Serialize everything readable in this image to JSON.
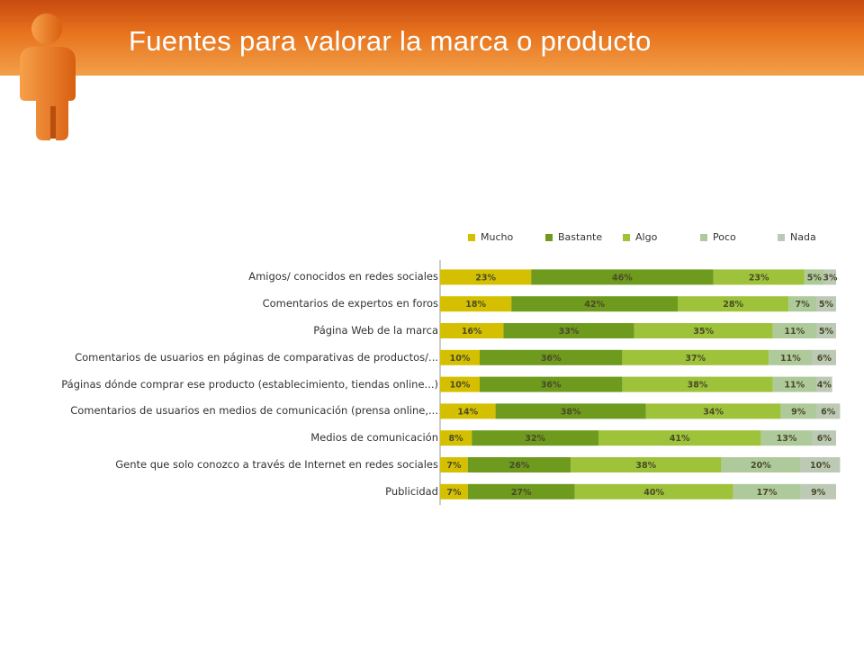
{
  "header": {
    "title": "Fuentes para valorar la marca o producto"
  },
  "icons": {
    "header_figure": "person-figure-icon"
  },
  "colors": {
    "header_orange": "#e06a1a",
    "mucho": "#d4c000",
    "bastante": "#6e9a1e",
    "algo": "#9ec23a",
    "poco": "#aec99a",
    "nada": "#bcc9b4"
  },
  "chart_data": {
    "type": "bar",
    "orientation": "horizontal",
    "stacked": true,
    "percent_stacked": true,
    "legend_position": "top",
    "grid": false,
    "xlim": [
      0,
      100
    ],
    "categories": [
      "Amigos/ conocidos en redes sociales",
      "Comentarios de expertos en foros",
      "Página Web de la marca",
      "Comentarios de usuarios en páginas de comparativas de productos/...",
      "Páginas dónde comprar ese producto (establecimiento, tiendas online...)",
      "Comentarios de usuarios en medios de comunicación (prensa online,...",
      "Medios de comunicación",
      "Gente que solo conozco a través de Internet en redes sociales",
      "Publicidad"
    ],
    "series": [
      {
        "name": "Mucho",
        "values": [
          23,
          18,
          16,
          10,
          10,
          14,
          8,
          7,
          7
        ]
      },
      {
        "name": "Bastante",
        "values": [
          46,
          42,
          33,
          36,
          36,
          38,
          32,
          26,
          27
        ]
      },
      {
        "name": "Algo",
        "values": [
          23,
          28,
          35,
          37,
          38,
          34,
          41,
          38,
          40
        ]
      },
      {
        "name": "Poco",
        "values": [
          5,
          7,
          11,
          11,
          11,
          9,
          13,
          20,
          17
        ]
      },
      {
        "name": "Nada",
        "values": [
          3,
          5,
          5,
          6,
          4,
          6,
          6,
          10,
          9
        ]
      }
    ]
  }
}
